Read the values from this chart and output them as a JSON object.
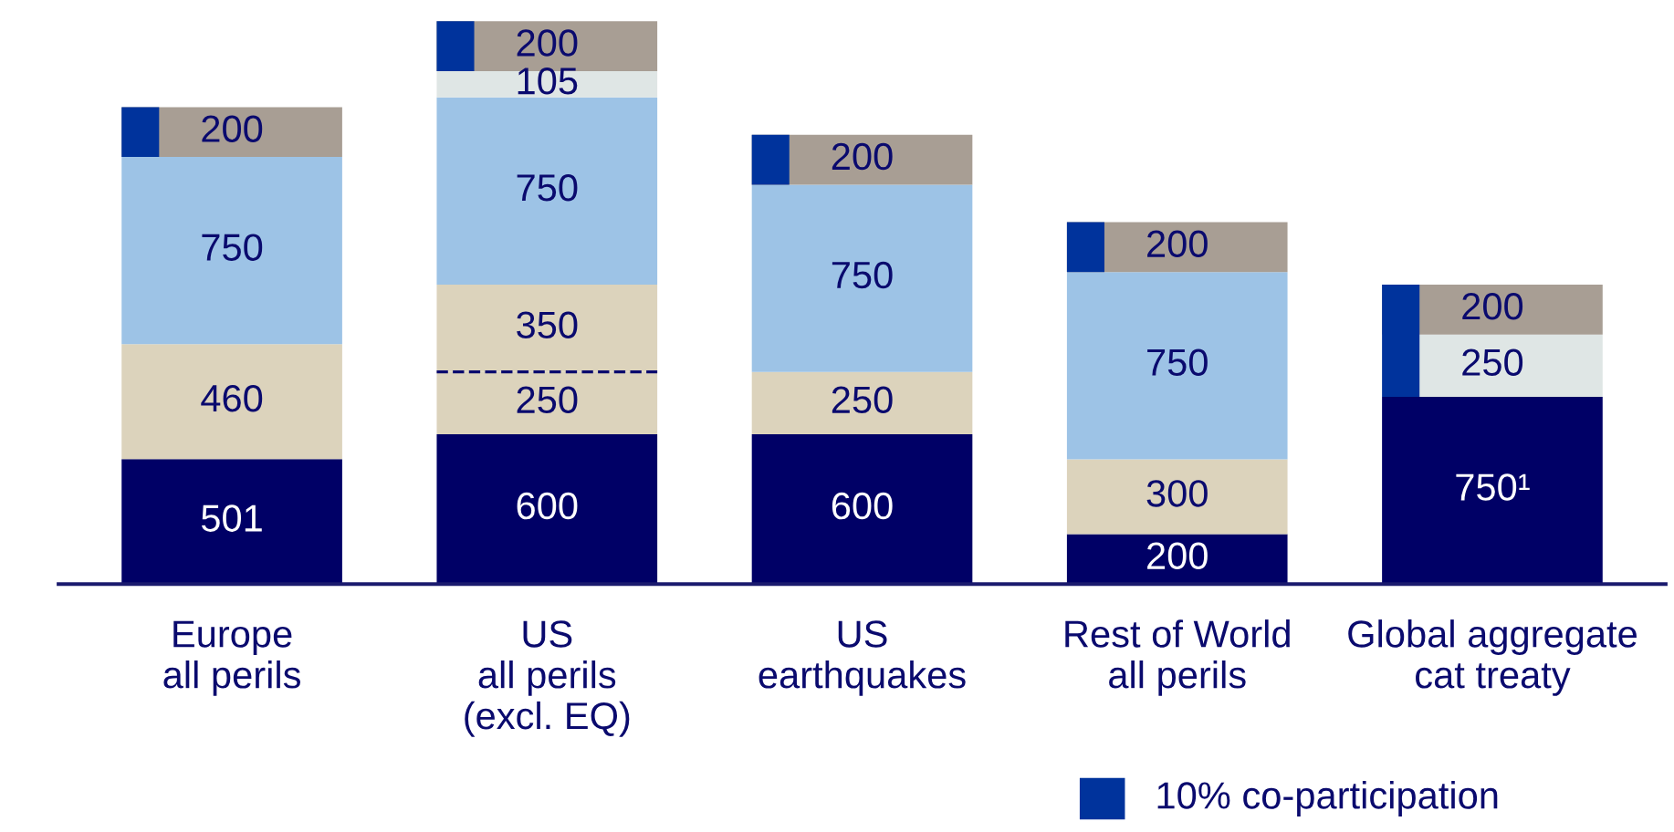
{
  "chart_data": {
    "type": "bar",
    "stacked": true,
    "data_labels": true,
    "grid": false,
    "categories": [
      "Europe\nall perils",
      "US\nall perils\n(excl. EQ)",
      "US\nearthquakes",
      "Rest of World\nall perils",
      "Global aggregate\ncat treaty"
    ],
    "series": [
      {
        "color": "#000066",
        "values": [
          501,
          600,
          600,
          200,
          750
        ],
        "value_labels": [
          "501",
          "600",
          "600",
          "200",
          "750¹"
        ]
      },
      {
        "color": "#dcd3bc",
        "values": [
          460,
          250,
          250,
          300,
          null
        ]
      },
      {
        "color": "#dcd3bc",
        "values": [
          null,
          350,
          null,
          null,
          null
        ],
        "line_style": "dashed"
      },
      {
        "color": "#9dc3e6",
        "values": [
          750,
          750,
          750,
          750,
          null
        ]
      },
      {
        "color": "#dfe6e5",
        "values": [
          null,
          105,
          null,
          null,
          250
        ]
      },
      {
        "color": "#a89e94",
        "values": [
          200,
          200,
          200,
          200,
          200
        ]
      }
    ],
    "annotations": [
      "10% co-participation"
    ]
  }
}
